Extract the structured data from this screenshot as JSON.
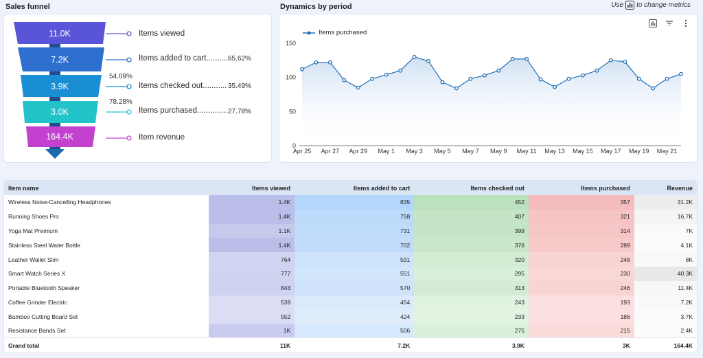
{
  "headers": {
    "funnel_title": "Sales funnel",
    "dynamics_title": "Dynamics by period",
    "hint_before": "Use",
    "hint_after": "to change metrics"
  },
  "funnel": {
    "stages": [
      {
        "value": "11.0K",
        "label": "Items viewed",
        "color": "#5a55d8"
      },
      {
        "value": "7.2K",
        "label": "Items added to cart..........",
        "pct": "65.62%",
        "color": "#2f6fd0"
      },
      {
        "value": "3.9K",
        "label": "Items checked out...........",
        "pct": "35.49%",
        "color": "#1a8ed2"
      },
      {
        "value": "3.0K",
        "label": "Items purchased..............",
        "pct": "27.78%",
        "color": "#22c3c9"
      },
      {
        "value": "164.4K",
        "label": "Item revenue",
        "color": "#c242cf"
      }
    ],
    "step_pcts": [
      "54.09%",
      "78.28%"
    ]
  },
  "chart_data": {
    "type": "area",
    "legend": "Items purchased",
    "x_ticks": [
      "Apr 25",
      "Apr 27",
      "Apr 29",
      "May 1",
      "May 3",
      "May 5",
      "May 7",
      "May 9",
      "May 11",
      "May 13",
      "May 15",
      "May 17",
      "May 19",
      "May 21"
    ],
    "y_ticks": [
      "150",
      "100",
      "50",
      "0"
    ],
    "ylim": [
      0,
      150
    ],
    "values": [
      112,
      122,
      122,
      96,
      85,
      98,
      104,
      110,
      130,
      124,
      93,
      84,
      98,
      103,
      110,
      127,
      127,
      97,
      86,
      98,
      103,
      110,
      125,
      123,
      98,
      84,
      98,
      105
    ],
    "line_color": "#1f6fb5"
  },
  "table": {
    "columns": [
      "Item name",
      "Items viewed",
      "Items added to cart",
      "Items checked out",
      "Items purchased",
      "Revenue"
    ],
    "rows": [
      [
        "Wireless Noise-Cancelling Headphones",
        "1.4K",
        "835",
        "452",
        "357",
        "31.2K"
      ],
      [
        "Running Shoes Pro",
        "1.4K",
        "758",
        "407",
        "321",
        "16.7K"
      ],
      [
        "Yoga Mat Premium",
        "1.1K",
        "731",
        "399",
        "314",
        "7K"
      ],
      [
        "Stainless Steel Water Bottle",
        "1.4K",
        "702",
        "376",
        "289",
        "4.1K"
      ],
      [
        "Leather Wallet Slim",
        "764",
        "591",
        "320",
        "248",
        "8K"
      ],
      [
        "Smart Watch Series X",
        "777",
        "551",
        "295",
        "230",
        "40.3K"
      ],
      [
        "Portable Bluetooth Speaker",
        "843",
        "570",
        "313",
        "246",
        "11.4K"
      ],
      [
        "Coffee Grinder Electric",
        "539",
        "454",
        "243",
        "193",
        "7.2K"
      ],
      [
        "Bamboo Cutting Board Set",
        "552",
        "424",
        "233",
        "186",
        "3.7K"
      ],
      [
        "Resistance Bands Set",
        "1K",
        "506",
        "275",
        "215",
        "2.4K"
      ]
    ],
    "total": [
      "Grand total",
      "11K",
      "7.2K",
      "3.9K",
      "3K",
      "164.4K"
    ]
  }
}
